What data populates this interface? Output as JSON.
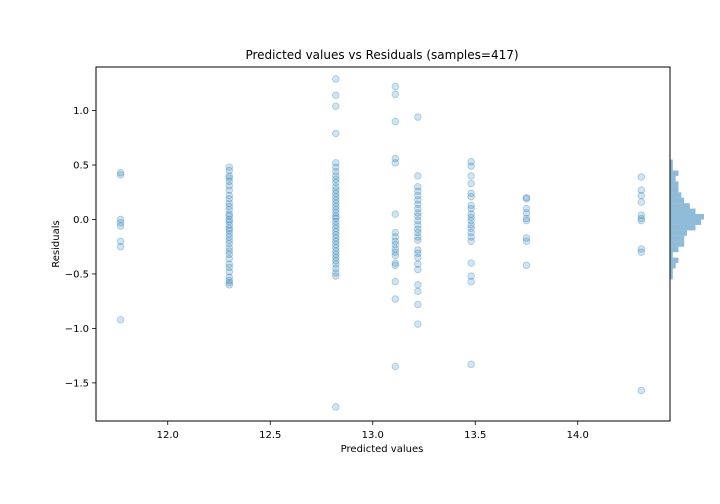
{
  "chart_data": {
    "type": "scatter",
    "title": "Predicted values vs Residuals (samples=417)",
    "xlabel": "Predicted values",
    "ylabel": "Residuals",
    "xlim": [
      11.65,
      14.45
    ],
    "ylim": [
      -1.85,
      1.4
    ],
    "xticks": [
      12.0,
      12.5,
      13.0,
      13.5,
      14.0
    ],
    "xtick_labels": [
      "12.0",
      "12.5",
      "13.0",
      "13.5",
      "14.0"
    ],
    "yticks": [
      -1.5,
      -1.0,
      -0.5,
      0.0,
      0.5,
      1.0
    ],
    "ytick_labels": [
      "−1.5",
      "−1.0",
      "−0.5",
      "0.0",
      "0.5",
      "1.0"
    ],
    "point_color": "#1f77b4",
    "point_alpha": 0.2,
    "grid": false,
    "marginal_histogram": {
      "orientation": "horizontal",
      "side": "right",
      "color": "#1f77b4",
      "bins": [
        {
          "y0": -0.55,
          "y1": -0.5,
          "count": 1
        },
        {
          "y0": -0.5,
          "y1": -0.45,
          "count": 1
        },
        {
          "y0": -0.45,
          "y1": -0.4,
          "count": 2
        },
        {
          "y0": -0.4,
          "y1": -0.35,
          "count": 3
        },
        {
          "y0": -0.35,
          "y1": -0.3,
          "count": 1
        },
        {
          "y0": -0.3,
          "y1": -0.25,
          "count": 3
        },
        {
          "y0": -0.25,
          "y1": -0.2,
          "count": 5
        },
        {
          "y0": -0.2,
          "y1": -0.15,
          "count": 5
        },
        {
          "y0": -0.15,
          "y1": -0.1,
          "count": 6
        },
        {
          "y0": -0.1,
          "y1": -0.05,
          "count": 9
        },
        {
          "y0": -0.05,
          "y1": 0.0,
          "count": 11
        },
        {
          "y0": 0.0,
          "y1": 0.05,
          "count": 12
        },
        {
          "y0": 0.05,
          "y1": 0.1,
          "count": 9
        },
        {
          "y0": 0.1,
          "y1": 0.15,
          "count": 7
        },
        {
          "y0": 0.15,
          "y1": 0.2,
          "count": 5
        },
        {
          "y0": 0.2,
          "y1": 0.25,
          "count": 4
        },
        {
          "y0": 0.25,
          "y1": 0.3,
          "count": 3
        },
        {
          "y0": 0.3,
          "y1": 0.35,
          "count": 3
        },
        {
          "y0": 0.35,
          "y1": 0.4,
          "count": 2
        },
        {
          "y0": 0.4,
          "y1": 0.45,
          "count": 3
        },
        {
          "y0": 0.45,
          "y1": 0.5,
          "count": 1
        },
        {
          "y0": 0.5,
          "y1": 0.55,
          "count": 1
        }
      ]
    },
    "series": [
      {
        "x": 11.77,
        "y": [
          0.43,
          0.41,
          0.0,
          -0.03,
          -0.06,
          -0.2,
          -0.25,
          -0.92
        ]
      },
      {
        "x": 12.3,
        "y": [
          0.48,
          0.45,
          0.4,
          0.38,
          0.35,
          0.31,
          0.27,
          0.22,
          0.19,
          0.15,
          0.12,
          0.09,
          0.05,
          0.03,
          0.0,
          -0.02,
          -0.05,
          -0.08,
          -0.1,
          -0.13,
          -0.16,
          -0.19,
          -0.22,
          -0.26,
          -0.29,
          -0.32,
          -0.36,
          -0.41,
          -0.44,
          -0.48,
          -0.53,
          -0.56,
          -0.58,
          -0.6
        ]
      },
      {
        "x": 12.82,
        "y": [
          1.29,
          1.14,
          1.04,
          0.79,
          0.52,
          0.48,
          0.44,
          0.4,
          0.37,
          0.34,
          0.3,
          0.27,
          0.24,
          0.21,
          0.18,
          0.15,
          0.12,
          0.09,
          0.06,
          0.03,
          0.01,
          -0.02,
          -0.05,
          -0.08,
          -0.11,
          -0.14,
          -0.17,
          -0.2,
          -0.23,
          -0.26,
          -0.29,
          -0.32,
          -0.35,
          -0.38,
          -0.41,
          -0.45,
          -0.49,
          -0.52,
          -1.72
        ]
      },
      {
        "x": 13.11,
        "y": [
          1.22,
          1.15,
          0.9,
          0.56,
          0.52,
          0.05,
          -0.12,
          -0.16,
          -0.2,
          -0.23,
          -0.27,
          -0.3,
          -0.33,
          -0.4,
          -0.42,
          -0.57,
          -0.73,
          -1.35
        ]
      },
      {
        "x": 13.22,
        "y": [
          0.94,
          0.4,
          0.3,
          0.26,
          0.22,
          0.18,
          0.14,
          0.1,
          0.06,
          0.03,
          -0.01,
          -0.05,
          -0.09,
          -0.12,
          -0.16,
          -0.19,
          -0.28,
          -0.31,
          -0.35,
          -0.41,
          -0.46,
          -0.6,
          -0.66,
          -0.78,
          -0.96
        ]
      },
      {
        "x": 13.48,
        "y": [
          0.53,
          0.49,
          0.4,
          0.33,
          0.24,
          0.21,
          0.13,
          0.1,
          0.05,
          0.02,
          -0.01,
          -0.05,
          -0.08,
          -0.12,
          -0.16,
          -0.2,
          -0.4,
          -0.52,
          -0.57,
          -1.33
        ]
      },
      {
        "x": 13.75,
        "y": [
          0.2,
          0.19,
          0.1,
          0.06,
          0.01,
          -0.01,
          -0.17,
          -0.2,
          -0.42
        ]
      },
      {
        "x": 14.31,
        "y": [
          0.39,
          0.27,
          0.22,
          0.16,
          0.04,
          0.01,
          -0.01,
          -0.27,
          -0.3,
          -1.57
        ]
      }
    ]
  }
}
